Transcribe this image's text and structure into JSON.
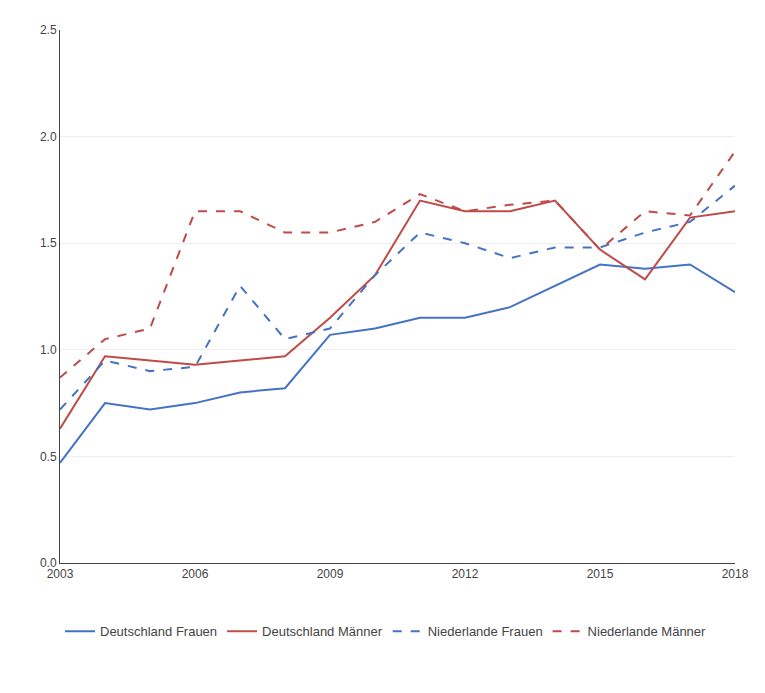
{
  "chart_data": {
    "type": "line",
    "x": [
      2003,
      2004,
      2005,
      2006,
      2007,
      2008,
      2009,
      2010,
      2011,
      2012,
      2013,
      2014,
      2015,
      2016,
      2017,
      2018
    ],
    "series": [
      {
        "name": "Deutschland Frauen",
        "color": "#4472C4",
        "line_style": "solid",
        "values": [
          0.47,
          0.75,
          0.72,
          0.75,
          0.8,
          0.82,
          1.07,
          1.1,
          1.15,
          1.15,
          1.2,
          1.3,
          1.4,
          1.38,
          1.4,
          1.27
        ]
      },
      {
        "name": "Deutschland Männer",
        "color": "#BE4B48",
        "line_style": "solid",
        "values": [
          0.63,
          0.97,
          0.95,
          0.93,
          0.95,
          0.97,
          1.15,
          1.35,
          1.7,
          1.65,
          1.65,
          1.7,
          1.47,
          1.33,
          1.62,
          1.65
        ]
      },
      {
        "name": "Niederlande Frauen",
        "color": "#4472C4",
        "line_style": "dashed",
        "values": [
          0.72,
          0.95,
          0.9,
          0.92,
          1.3,
          1.05,
          1.1,
          1.35,
          1.55,
          1.5,
          1.43,
          1.48,
          1.48,
          1.55,
          1.6,
          1.77
        ]
      },
      {
        "name": "Niederlande Männer",
        "color": "#BE4B48",
        "line_style": "dashed",
        "values": [
          0.87,
          1.05,
          1.1,
          1.65,
          1.65,
          1.55,
          1.55,
          1.6,
          1.73,
          1.65,
          1.68,
          1.7,
          1.47,
          1.65,
          1.63,
          1.93
        ]
      }
    ],
    "xlim": [
      2003,
      2018
    ],
    "xticks": [
      2003,
      2006,
      2009,
      2012,
      2015,
      2018
    ],
    "ylim": [
      0.0,
      2.5
    ],
    "yticks": [
      {
        "value": 0.0,
        "label": "0.0"
      },
      0.5,
      {
        "value": 1.0,
        "label": "1.0"
      },
      1.5,
      {
        "value": 2.0,
        "label": "2.0"
      },
      2.5
    ],
    "grid": "y",
    "legend": "bottom"
  }
}
